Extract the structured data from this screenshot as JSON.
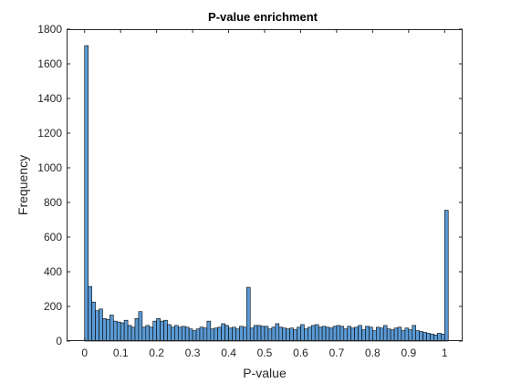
{
  "chart_data": {
    "type": "bar",
    "title": "P-value enrichment",
    "xlabel": "P-value",
    "ylabel": "Frequency",
    "xlim": [
      -0.05,
      1.05
    ],
    "ylim": [
      0,
      1800
    ],
    "xticks": [
      0,
      0.1,
      0.2,
      0.3,
      0.4,
      0.5,
      0.6,
      0.7,
      0.8,
      0.9,
      1
    ],
    "xtick_labels": [
      "0",
      "0.1",
      "0.2",
      "0.3",
      "0.4",
      "0.5",
      "0.6",
      "0.7",
      "0.8",
      "0.9",
      "1"
    ],
    "yticks": [
      0,
      200,
      400,
      600,
      800,
      1000,
      1200,
      1400,
      1600,
      1800
    ],
    "ytick_labels": [
      "0",
      "200",
      "400",
      "600",
      "800",
      "1000",
      "1200",
      "1400",
      "1600",
      "1800"
    ],
    "grid": false,
    "bin_width": 0.01,
    "bin_start": 0,
    "bar_color": "#5b9bd5",
    "edge_color": "#000000",
    "values": [
      1705,
      315,
      225,
      175,
      185,
      130,
      125,
      150,
      115,
      110,
      105,
      120,
      90,
      80,
      130,
      170,
      80,
      90,
      80,
      115,
      130,
      115,
      120,
      95,
      80,
      90,
      80,
      85,
      80,
      70,
      60,
      70,
      80,
      75,
      115,
      70,
      75,
      80,
      100,
      90,
      75,
      80,
      70,
      85,
      80,
      310,
      75,
      90,
      90,
      85,
      85,
      70,
      80,
      100,
      80,
      75,
      70,
      75,
      65,
      80,
      95,
      70,
      80,
      90,
      95,
      80,
      85,
      80,
      75,
      85,
      90,
      85,
      70,
      85,
      75,
      80,
      90,
      65,
      85,
      80,
      60,
      80,
      75,
      90,
      70,
      65,
      75,
      80,
      60,
      75,
      65,
      90,
      60,
      55,
      50,
      45,
      40,
      35,
      45,
      40,
      755
    ]
  }
}
